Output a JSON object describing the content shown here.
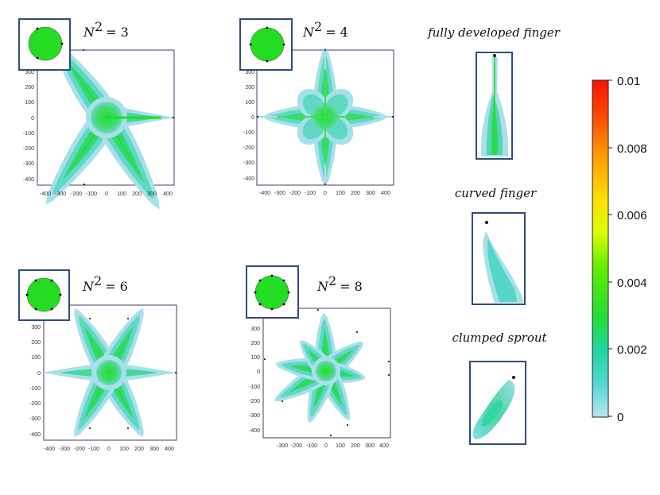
{
  "panels": [
    {
      "id": "n3",
      "n_label": "N",
      "exp": "2",
      "eq_value": "= 3",
      "ticks_x": [
        "-400",
        "-300",
        "-200",
        "-100",
        "0",
        "100",
        "200",
        "300",
        "400"
      ],
      "ticks_y": [
        "300",
        "200",
        "100",
        "0",
        "-100",
        "-200",
        "-300",
        "-400"
      ]
    },
    {
      "id": "n4",
      "n_label": "N",
      "exp": "2",
      "eq_value": "= 4",
      "ticks_x": [
        "-400",
        "-300",
        "-200",
        "-100",
        "0",
        "100",
        "200",
        "300",
        "400"
      ],
      "ticks_y": [
        "300",
        "200",
        "100",
        "0",
        "-100",
        "-200",
        "-300",
        "-400"
      ]
    },
    {
      "id": "n6",
      "n_label": "N",
      "exp": "2",
      "eq_value": "= 6",
      "ticks_x": [
        "-400",
        "-300",
        "-200",
        "-100",
        "0",
        "100",
        "200",
        "300",
        "400"
      ],
      "ticks_y": [
        "300",
        "200",
        "100",
        "0",
        "-100",
        "-200",
        "-300",
        "-400"
      ]
    },
    {
      "id": "n8",
      "n_label": "N",
      "exp": "2",
      "eq_value": "= 8",
      "ticks_x": [
        "-300",
        "-200",
        "-100",
        "0",
        "100",
        "200",
        "300",
        "400"
      ],
      "ticks_y": [
        "300",
        "200",
        "100",
        "0",
        "-100",
        "-200",
        "-300",
        "-400"
      ]
    }
  ],
  "captions": {
    "fully_developed": "fully developed finger",
    "curved": "curved finger",
    "clumped": "clumped sprout"
  },
  "colorbar": {
    "ticks": [
      "0.01",
      "0.008",
      "0.006",
      "0.004",
      "0.002",
      "0"
    ]
  },
  "colors": {
    "green": "#22dd22",
    "cyan": "#55d6c8",
    "pale": "#aee0ea",
    "frame": "#4a3a6a",
    "inset_frame": "#2f4d7a"
  }
}
